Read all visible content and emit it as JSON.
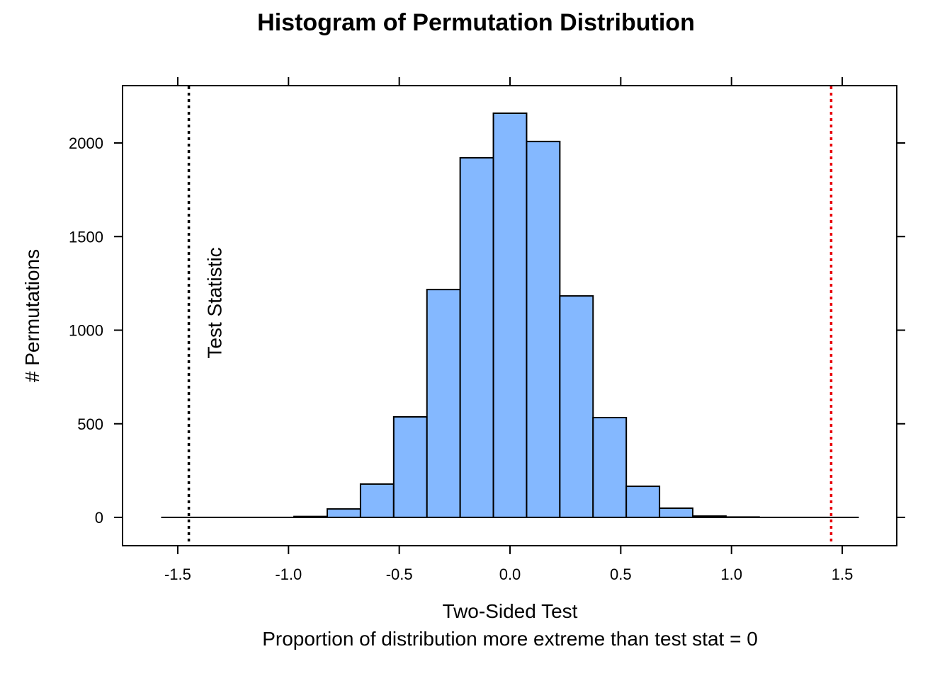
{
  "chart_data": {
    "type": "bar",
    "title": "Histogram of Permutation Distribution",
    "xlabel": "Two-Sided Test",
    "subtitle": "Proportion of distribution more extreme than test stat = 0",
    "ylabel": "# Permutations",
    "xlim": [
      -1.75,
      1.75
    ],
    "ylim": [
      -150,
      2300
    ],
    "x_ticks": [
      -1.5,
      -1.0,
      -0.5,
      0.0,
      0.5,
      1.0,
      1.5
    ],
    "x_tick_labels": [
      "-1.5",
      "-1.0",
      "-0.5",
      "0.0",
      "0.5",
      "1.0",
      "1.5"
    ],
    "y_ticks": [
      0,
      500,
      1000,
      1500,
      2000
    ],
    "y_tick_labels": [
      "0",
      "500",
      "1000",
      "1500",
      "2000"
    ],
    "bin_edges": [
      -0.975,
      -0.825,
      -0.675,
      -0.525,
      -0.375,
      -0.225,
      -0.075,
      0.075,
      0.225,
      0.375,
      0.525,
      0.675,
      0.825,
      0.975,
      1.125
    ],
    "values": [
      5,
      45,
      178,
      537,
      1217,
      1921,
      2159,
      2008,
      1183,
      533,
      166,
      49,
      7,
      2
    ],
    "baseline_range": [
      -1.575,
      1.575
    ],
    "bar_color": "#84B8FF",
    "reference_lines": [
      {
        "x": -1.45,
        "color": "#000000",
        "label": "Test Statistic"
      },
      {
        "x": 1.45,
        "color": "#E8000B",
        "label": ""
      }
    ]
  }
}
